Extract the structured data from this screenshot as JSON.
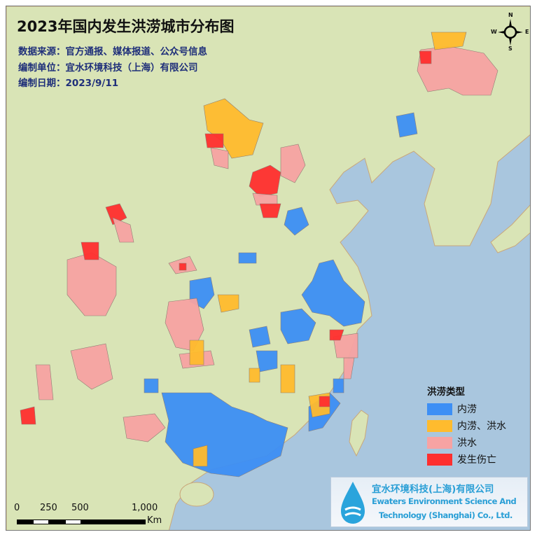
{
  "title": "2023年国内发生洪涝城市分布图",
  "data_source": "数据来源：官方通报、媒体报道、公众号信息",
  "compiler": "编制单位：宜水环境科技（上海）有限公司",
  "date": "编制日期：2023/9/11",
  "legend": {
    "title": "洪涝类型",
    "items": [
      {
        "label": "内涝",
        "color": "#3d8ff5"
      },
      {
        "label": "内涝、洪水",
        "color": "#ffbb2e"
      },
      {
        "label": "洪水",
        "color": "#f7a3a3"
      },
      {
        "label": "发生伤亡",
        "color": "#ff2f2f"
      }
    ]
  },
  "logo": {
    "name_cn": "宜水环境科技(上海)有限公司",
    "name_en_1": "Ewaters Environment Science And",
    "name_en_2": "Technology (Shanghai) Co., Ltd."
  },
  "scale_bar": {
    "ticks": [
      "0",
      "250",
      "500",
      "1,000"
    ],
    "unit": "Km"
  },
  "compass": {
    "n": "N",
    "s": "S",
    "e": "E",
    "w": "W"
  },
  "colors": {
    "land": "#d9e4b6",
    "sea": "#a9c6de"
  }
}
